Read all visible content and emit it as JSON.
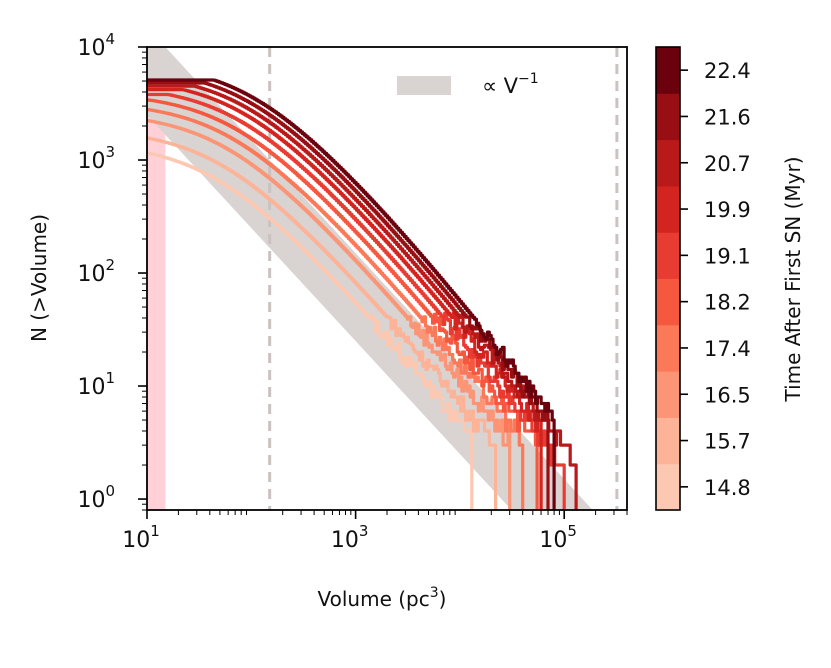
{
  "chart_data": {
    "type": "line",
    "xscale": "log",
    "yscale": "log",
    "xlabel": "Volume (pc³)",
    "ylabel": "N (>Volume)",
    "xlim": [
      10,
      400000
    ],
    "ylim": [
      0.8,
      10000
    ],
    "x_ticks": [
      {
        "base": "10",
        "exp": "1",
        "value": 10
      },
      {
        "base": "10",
        "exp": "3",
        "value": 1000
      },
      {
        "base": "10",
        "exp": "5",
        "value": 100000
      }
    ],
    "y_ticks": [
      {
        "base": "10",
        "exp": "0",
        "value": 1
      },
      {
        "base": "10",
        "exp": "1",
        "value": 10
      },
      {
        "base": "10",
        "exp": "2",
        "value": 100
      },
      {
        "base": "10",
        "exp": "3",
        "value": 1000
      },
      {
        "base": "10",
        "exp": "4",
        "value": 10000
      }
    ],
    "legend": {
      "label": "∝ V⁻¹",
      "location": "top-right"
    },
    "reference_band": {
      "description": "∝ V^-1 band",
      "x_left_edge": 10,
      "upper_y_at_10": 15000,
      "lower_y_at_1000": 25,
      "color": "#d9d4d2"
    },
    "vertical_lines": [
      150,
      320000
    ],
    "shaded_region": {
      "x_from": 10,
      "x_to": 15,
      "color": "#ffd0d8"
    },
    "colorbar": {
      "label": "Time After First SN (Myr)",
      "tick_labels": [
        "14.8",
        "15.7",
        "16.5",
        "17.4",
        "18.2",
        "19.1",
        "19.9",
        "20.7",
        "21.6",
        "22.4"
      ],
      "colors": [
        "#fdc8b1",
        "#fcb398",
        "#fc9576",
        "#fb7858",
        "#f5573f",
        "#e83b31",
        "#d4241f",
        "#b91a19",
        "#990e12",
        "#6b010d"
      ]
    },
    "series": [
      {
        "name": "14.8 Myr",
        "color": "#fdc8b1",
        "N0": 1650,
        "a": 0.9,
        "x_end": 13000
      },
      {
        "name": "15.7 Myr",
        "color": "#fcb398",
        "N0": 2000,
        "a": 0.82,
        "x_end": 22000
      },
      {
        "name": "16.5 Myr",
        "color": "#fc9576",
        "N0": 2600,
        "a": 0.78,
        "x_end": 30000
      },
      {
        "name": "17.4 Myr",
        "color": "#fb7858",
        "N0": 3000,
        "a": 0.75,
        "x_end": 40000
      },
      {
        "name": "18.2 Myr",
        "color": "#f5573f",
        "N0": 3400,
        "a": 0.73,
        "x_end": 55000
      },
      {
        "name": "19.1 Myr",
        "color": "#e83b31",
        "N0": 3800,
        "a": 0.72,
        "x_end": 100000
      },
      {
        "name": "19.9 Myr",
        "color": "#d4241f",
        "N0": 4200,
        "a": 0.7,
        "x_end": 60000
      },
      {
        "name": "20.7 Myr",
        "color": "#b91a19",
        "N0": 4500,
        "a": 0.69,
        "x_end": 130000
      },
      {
        "name": "21.6 Myr",
        "color": "#990e12",
        "N0": 4800,
        "a": 0.68,
        "x_end": 70000
      },
      {
        "name": "22.4 Myr",
        "color": "#6b010d",
        "N0": 5100,
        "a": 0.66,
        "x_end": 80000
      }
    ]
  },
  "text": {
    "legend_prefix": "∝ V",
    "legend_exp": "−1",
    "xlabel_main": "Volume (pc",
    "xlabel_exp": "3",
    "xlabel_close": ")",
    "ylabel": "N (>Volume)",
    "cbar_label": "Time After First SN (Myr)"
  }
}
